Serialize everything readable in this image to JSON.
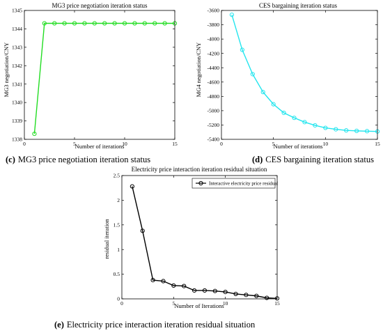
{
  "chart_data": [
    {
      "id": "c",
      "type": "line",
      "title": "MG3 price negotiation iteration status",
      "xlabel": "Number of iterations",
      "ylabel": "MG3 negotiation/CNY",
      "caption_letter": "(c)",
      "caption": "MG3 price negotiation iteration status",
      "xlim": [
        0,
        15
      ],
      "ylim": [
        1338,
        1345
      ],
      "xticks": [
        0,
        5,
        10,
        15
      ],
      "yticks": [
        1338,
        1339,
        1340,
        1341,
        1342,
        1343,
        1344,
        1345
      ],
      "grid": false,
      "color": "#22dd22",
      "marker": "circle",
      "x": [
        1,
        2,
        3,
        4,
        5,
        6,
        7,
        8,
        9,
        10,
        11,
        12,
        13,
        14,
        15
      ],
      "values": [
        1338.3,
        1344.3,
        1344.3,
        1344.3,
        1344.3,
        1344.3,
        1344.3,
        1344.3,
        1344.3,
        1344.3,
        1344.3,
        1344.3,
        1344.3,
        1344.3,
        1344.3
      ]
    },
    {
      "id": "d",
      "type": "line",
      "title": "CES bargaining iteration status",
      "xlabel": "Number of iterations",
      "ylabel": "MG4 negotiation/CNY",
      "caption_letter": "(d)",
      "caption": "CES bargaining iteration status",
      "xlim": [
        0,
        15
      ],
      "ylim": [
        -5400,
        -3600
      ],
      "xticks": [
        0,
        5,
        10,
        15
      ],
      "yticks": [
        -5400,
        -5200,
        -5000,
        -4800,
        -4600,
        -4400,
        -4200,
        -4000,
        -3800,
        -3600
      ],
      "grid": false,
      "color": "#22e5ee",
      "marker": "circle",
      "x": [
        1,
        2,
        3,
        4,
        5,
        6,
        7,
        8,
        9,
        10,
        11,
        12,
        13,
        14,
        15
      ],
      "values": [
        -3660,
        -4150,
        -4490,
        -4740,
        -4910,
        -5030,
        -5100,
        -5160,
        -5205,
        -5240,
        -5260,
        -5275,
        -5282,
        -5286,
        -5290
      ]
    },
    {
      "id": "e",
      "type": "line",
      "title": "Electricity price interaction iteration residual situation",
      "xlabel": "Number of Iterations",
      "ylabel": "residual iteration",
      "caption_letter": "(e)",
      "caption": "Electricity price interaction iteration residual situation",
      "xlim": [
        0,
        15
      ],
      "ylim": [
        0,
        2.5
      ],
      "xticks": [
        0,
        5,
        10,
        15
      ],
      "yticks": [
        0,
        0.5,
        1,
        1.5,
        2,
        2.5
      ],
      "ytick_labels": [
        "0",
        "0.5",
        "1",
        "1.5",
        "2",
        "2.5"
      ],
      "grid": false,
      "legend": "top-right",
      "series": [
        {
          "name": "Interactive electricity price residual",
          "color": "#000000",
          "marker": "circle",
          "x": [
            1,
            2,
            3,
            4,
            5,
            6,
            7,
            8,
            9,
            10,
            11,
            12,
            13,
            14,
            15
          ],
          "values": [
            2.28,
            1.38,
            0.38,
            0.36,
            0.27,
            0.26,
            0.17,
            0.17,
            0.16,
            0.14,
            0.1,
            0.08,
            0.06,
            0.02,
            0.01
          ]
        }
      ]
    }
  ]
}
